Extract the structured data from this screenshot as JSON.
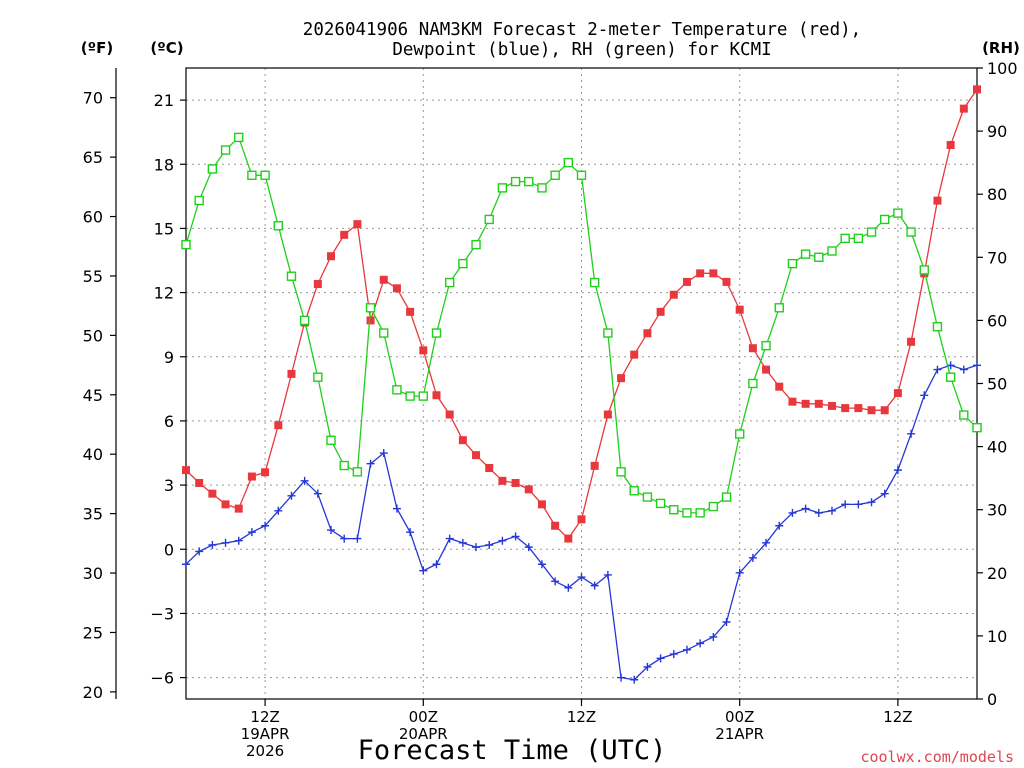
{
  "chart_data": {
    "type": "line",
    "title_line1": "2026041906 NAM3KM Forecast 2-meter Temperature (red),",
    "title_line2": "Dewpoint (blue), RH (green) for KCMI",
    "xlabel": "Forecast Time (UTC)",
    "credit": "coolwx.com/models",
    "unit_labels": {
      "fahrenheit": "(ºF)",
      "celsius": "(ºC)",
      "rh": "(RH)"
    },
    "x_range_hours": [
      0,
      60
    ],
    "x_ticks": [
      {
        "hour": 6,
        "lines": [
          "12Z",
          "19APR",
          "2026"
        ]
      },
      {
        "hour": 18,
        "lines": [
          "00Z",
          "20APR"
        ]
      },
      {
        "hour": 30,
        "lines": [
          "12Z"
        ]
      },
      {
        "hour": 42,
        "lines": [
          "00Z",
          "21APR"
        ]
      },
      {
        "hour": 54,
        "lines": [
          "12Z"
        ]
      }
    ],
    "celsius_axis": {
      "range": [
        -7.0,
        22.5
      ],
      "ticks": [
        -6,
        -3,
        0,
        3,
        6,
        9,
        12,
        15,
        18,
        21
      ]
    },
    "fahrenheit_axis": {
      "ticks": [
        20,
        25,
        30,
        35,
        40,
        45,
        50,
        55,
        60,
        65,
        70
      ]
    },
    "rh_axis": {
      "range": [
        0,
        100
      ],
      "ticks": [
        0,
        10,
        20,
        30,
        40,
        50,
        60,
        70,
        80,
        90,
        100
      ]
    },
    "series": [
      {
        "name": "Temperature",
        "unit": "°C",
        "color": "#e8383d",
        "marker": "filled-square",
        "values": [
          3.7,
          3.1,
          2.6,
          2.1,
          1.9,
          3.4,
          3.6,
          5.8,
          8.2,
          10.6,
          12.4,
          13.7,
          14.7,
          15.2,
          10.7,
          12.6,
          12.2,
          11.1,
          9.3,
          7.2,
          6.3,
          5.1,
          4.4,
          3.8,
          3.2,
          3.1,
          2.8,
          2.1,
          1.1,
          0.5,
          1.4,
          3.9,
          6.3,
          8.0,
          9.1,
          10.1,
          11.1,
          11.9,
          12.5,
          12.9,
          12.9,
          12.5,
          11.2,
          9.4,
          8.4,
          7.6,
          6.9,
          6.8,
          6.8,
          6.7,
          6.6,
          6.6,
          6.5,
          6.5,
          7.3,
          9.7,
          12.9,
          16.3,
          18.9,
          20.6,
          21.5
        ]
      },
      {
        "name": "Dewpoint",
        "unit": "°C",
        "color": "#2438d6",
        "marker": "plus",
        "values": [
          -0.7,
          -0.1,
          0.2,
          0.3,
          0.4,
          0.8,
          1.1,
          1.8,
          2.5,
          3.2,
          2.6,
          0.9,
          0.5,
          0.5,
          4.0,
          4.5,
          1.9,
          0.8,
          -1.0,
          -0.7,
          0.5,
          0.3,
          0.1,
          0.2,
          0.4,
          0.6,
          0.1,
          -0.7,
          -1.5,
          -1.8,
          -1.3,
          -1.7,
          -1.2,
          -6.0,
          -6.1,
          -5.5,
          -5.1,
          -4.9,
          -4.7,
          -4.4,
          -4.1,
          -3.4,
          -1.1,
          -0.4,
          0.3,
          1.1,
          1.7,
          1.9,
          1.7,
          1.8,
          2.1,
          2.1,
          2.2,
          2.6,
          3.7,
          5.4,
          7.2,
          8.4,
          8.6,
          8.4,
          8.6
        ]
      },
      {
        "name": "RH",
        "unit": "%",
        "color": "#1fd01a",
        "marker": "open-square",
        "values": [
          72,
          79,
          84,
          87,
          89,
          83,
          83,
          75,
          67,
          60,
          51,
          41,
          37,
          36,
          62,
          58,
          49,
          48,
          48,
          58,
          66,
          69,
          72,
          76,
          81,
          82,
          82,
          81,
          83,
          85,
          83,
          66,
          58,
          36,
          33,
          32,
          31,
          30,
          29.5,
          29.5,
          30.5,
          32,
          42,
          50,
          56,
          62,
          69,
          70.5,
          70,
          71,
          73,
          73,
          74,
          76,
          77,
          74,
          68,
          59,
          51,
          45,
          43
        ]
      }
    ]
  }
}
